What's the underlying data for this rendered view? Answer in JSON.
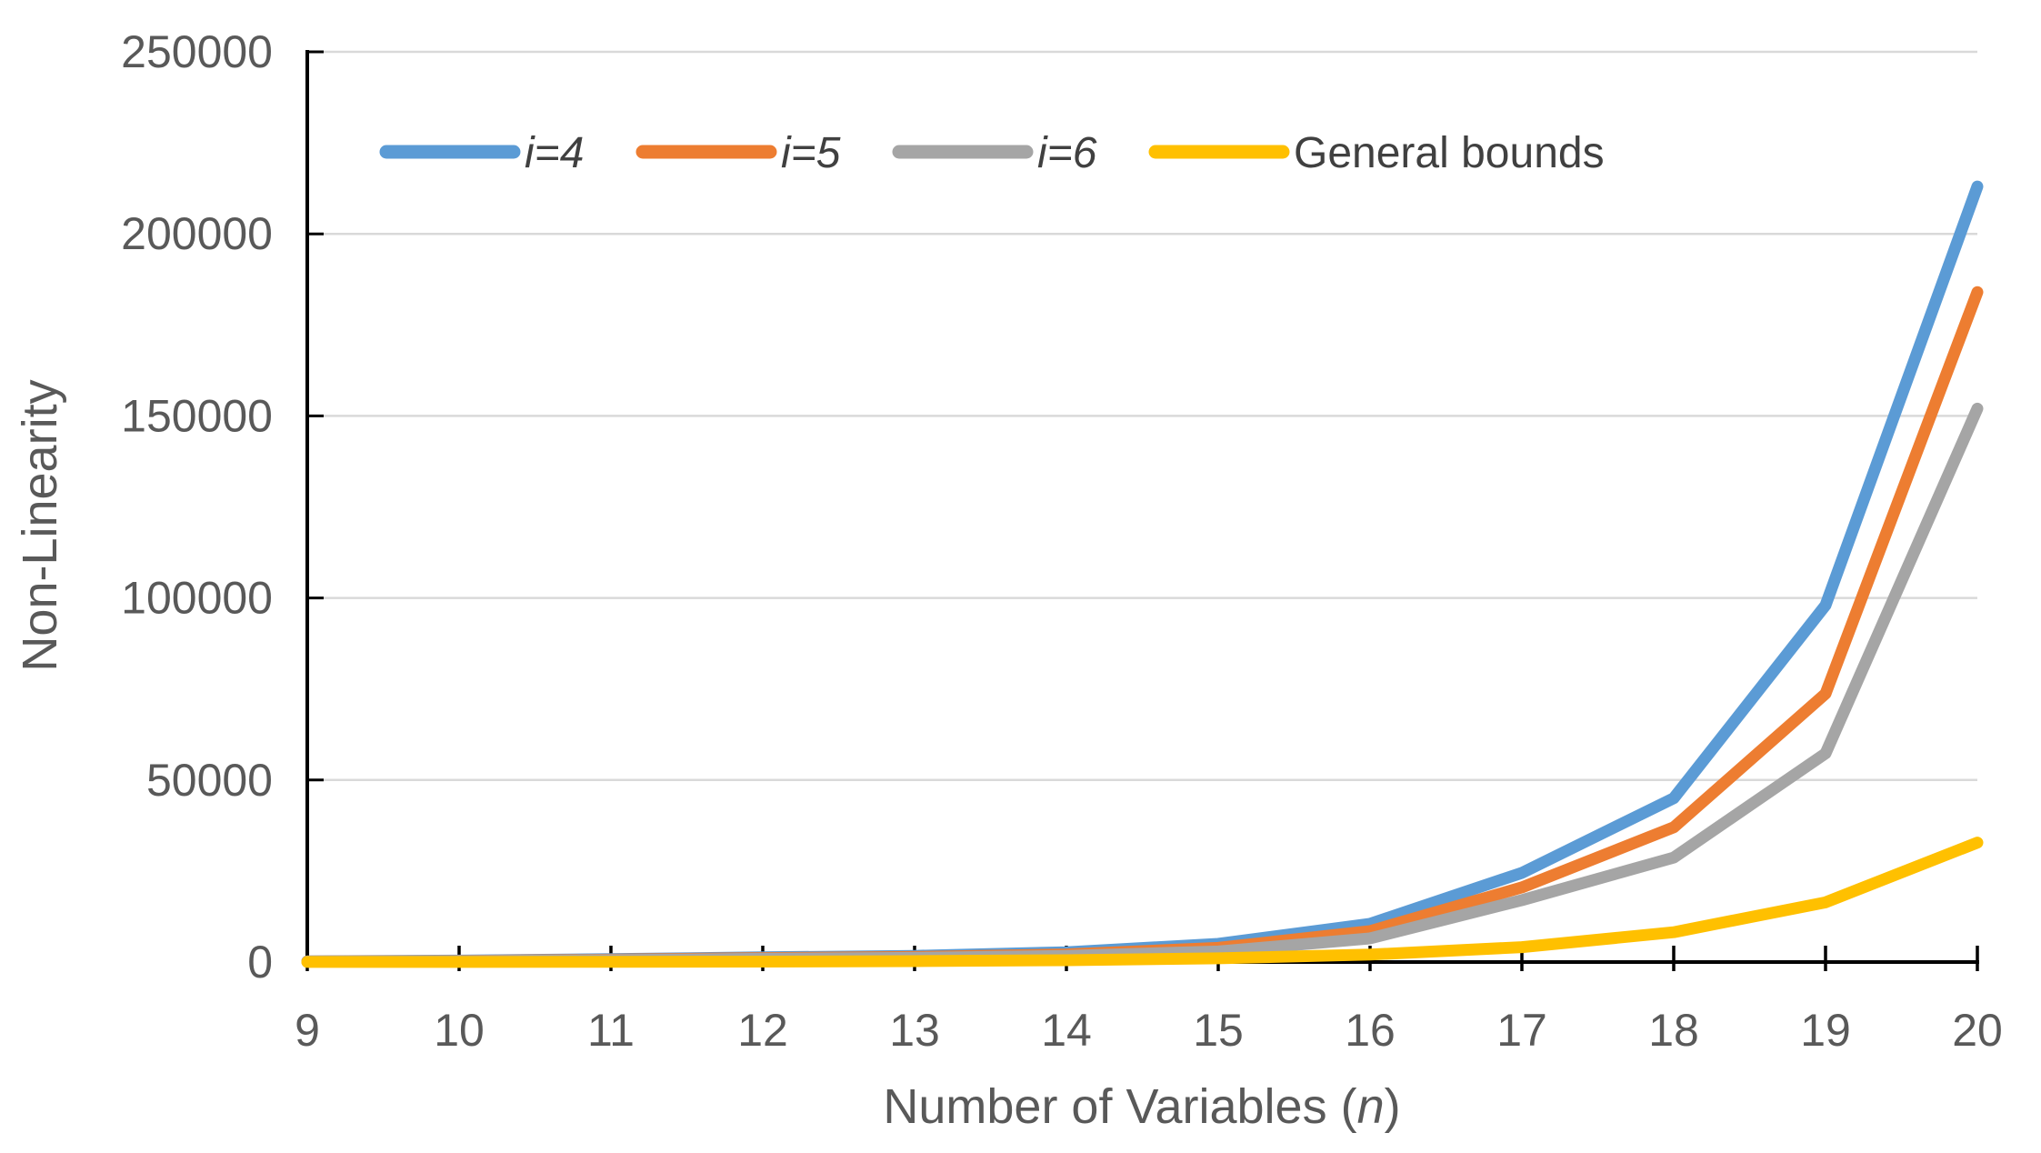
{
  "chart_data": {
    "type": "line",
    "title": "",
    "ylabel": "Non-Linearity",
    "xlabel_prefix": "Number of Variables (",
    "xlabel_var": "n",
    "xlabel_suffix": ")",
    "x": [
      9,
      10,
      11,
      12,
      13,
      14,
      15,
      16,
      17,
      18,
      19,
      20
    ],
    "x_tick_labels": [
      "9",
      "10",
      "11",
      "12",
      "13",
      "14",
      "15",
      "16",
      "17",
      "18",
      "19",
      "20"
    ],
    "y_ticks": [
      0,
      50000,
      100000,
      150000,
      200000,
      250000
    ],
    "y_tick_labels": [
      "0",
      "50000",
      "100000",
      "150000",
      "200000",
      "250000"
    ],
    "xlim": [
      9,
      20
    ],
    "ylim": [
      0,
      250000
    ],
    "grid": "horizontal-only",
    "legend_position": "top-inside-horizontal",
    "series": [
      {
        "name": "i=4",
        "italic": true,
        "color": "#5B9BD5",
        "values": [
          200,
          400,
          800,
          1300,
          1700,
          2700,
          5000,
          10500,
          24500,
          45000,
          98000,
          213000
        ]
      },
      {
        "name": "i=5",
        "italic": true,
        "color": "#ED7D31",
        "values": [
          160,
          320,
          650,
          1100,
          1400,
          2100,
          3900,
          8500,
          20500,
          37000,
          73700,
          184000
        ]
      },
      {
        "name": "i=6",
        "italic": true,
        "color": "#A5A5A5",
        "values": [
          130,
          260,
          520,
          900,
          1150,
          1700,
          2900,
          6500,
          17000,
          28700,
          57300,
          152000
        ]
      },
      {
        "name": "General bounds",
        "italic": false,
        "color": "#FFC000",
        "values": [
          16,
          32,
          64,
          128,
          256,
          512,
          1024,
          2048,
          4096,
          8192,
          16400,
          32800
        ]
      }
    ],
    "colors": {
      "background": "#FFFFFF",
      "gridline": "#D9D9D9",
      "axis": "#000000",
      "tick_label": "#595959",
      "axis_title": "#595959",
      "legend_text": "#404040"
    }
  }
}
